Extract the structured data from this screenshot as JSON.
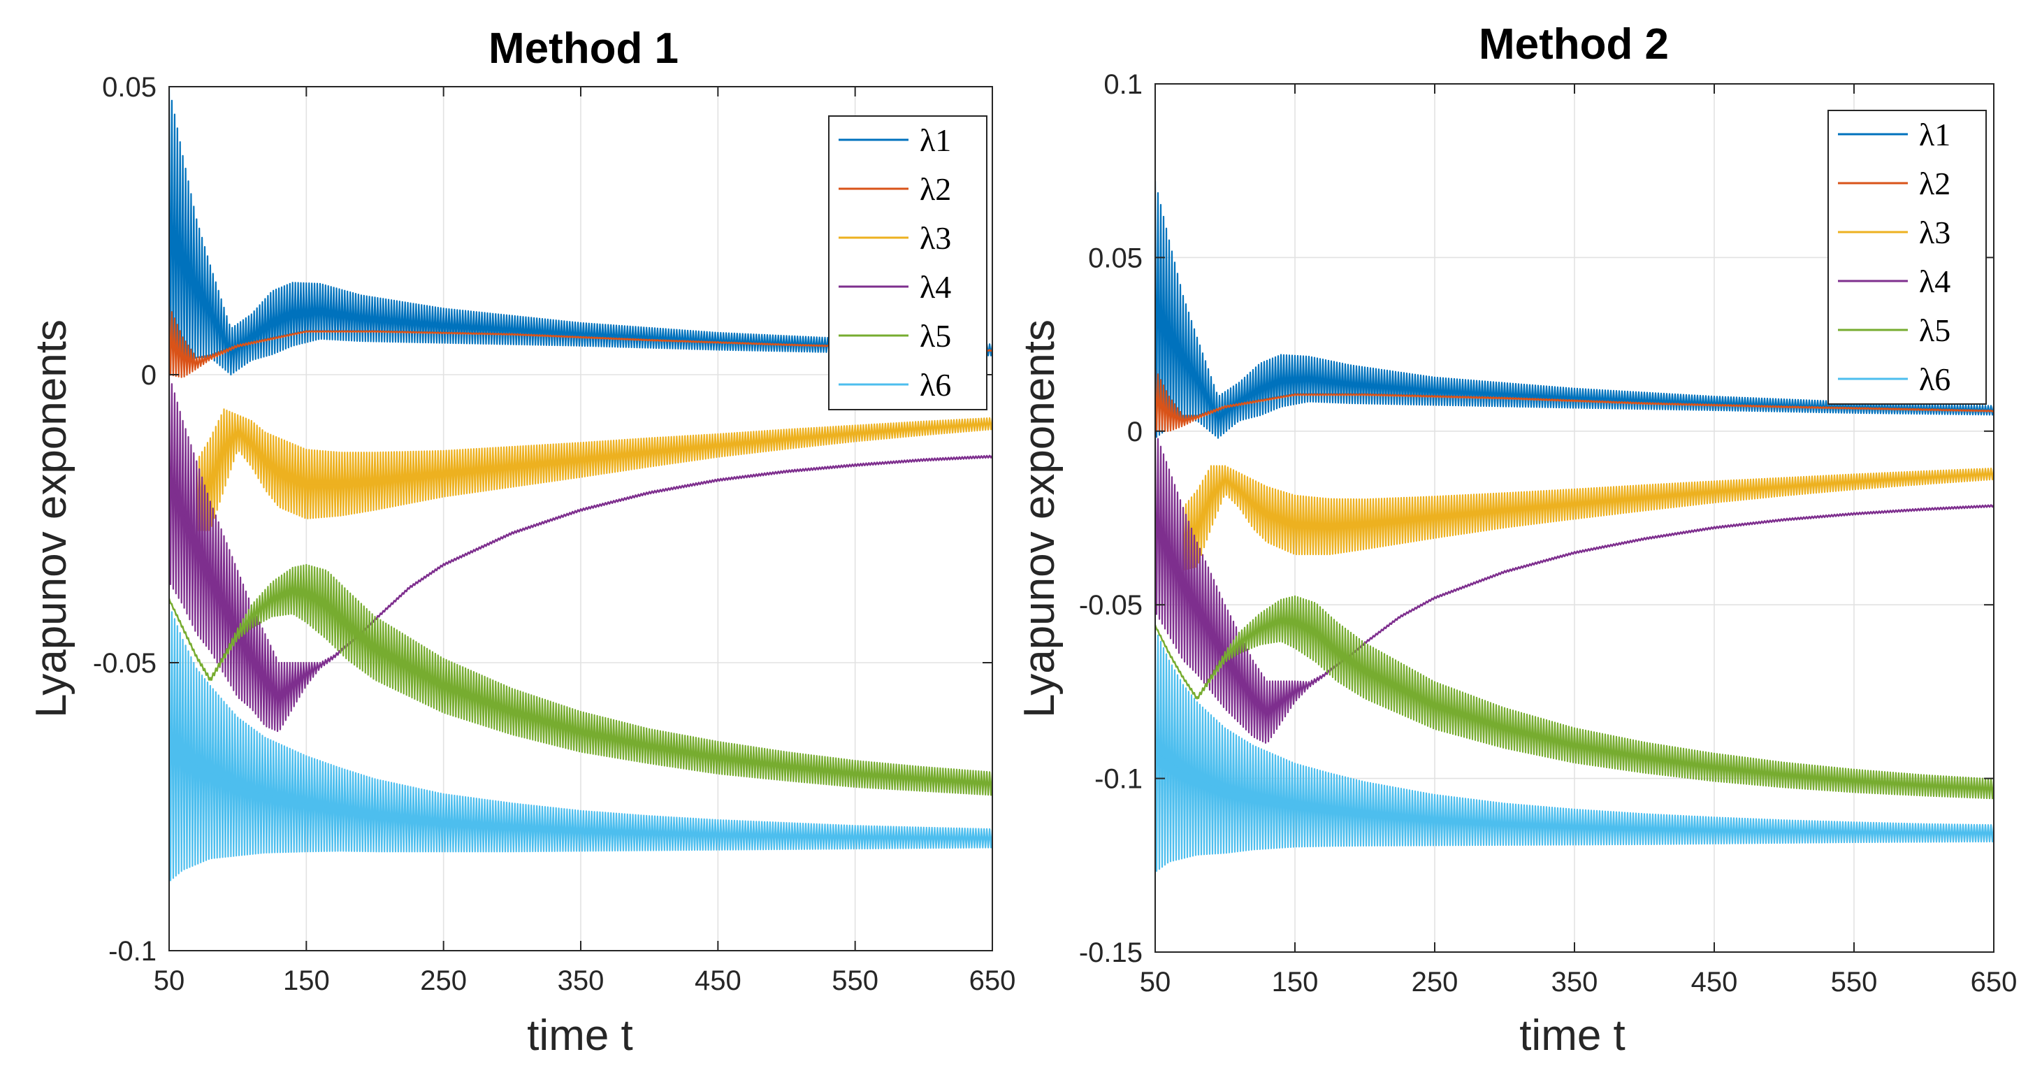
{
  "chart_data": [
    {
      "type": "line",
      "title": "Method 1",
      "xlabel": "time t",
      "ylabel": "Lyapunov exponents",
      "xlim": [
        50,
        650
      ],
      "ylim": [
        -0.1,
        0.05
      ],
      "xticks": [
        50,
        150,
        250,
        350,
        450,
        550,
        650
      ],
      "yticks": [
        -0.1,
        -0.05,
        0,
        0.05
      ],
      "xtick_labels": [
        "50",
        "150",
        "250",
        "350",
        "450",
        "550",
        "650"
      ],
      "ytick_labels": [
        "-0.1",
        "-0.05",
        "0",
        "0.05"
      ],
      "grid": true,
      "legend_position": "top-right",
      "series": [
        {
          "name": "λ1",
          "legend_label": "λ1",
          "color": "#0072BD",
          "x": [
            50,
            60,
            70,
            80,
            95,
            110,
            125,
            140,
            160,
            190,
            250,
            350,
            450,
            550,
            650
          ],
          "center": [
            0.025,
            0.02,
            0.015,
            0.011,
            0.004,
            0.0065,
            0.009,
            0.0105,
            0.011,
            0.0098,
            0.0085,
            0.007,
            0.0058,
            0.005,
            0.0043
          ],
          "spread": [
            0.025,
            0.018,
            0.012,
            0.008,
            0.004,
            0.004,
            0.0055,
            0.0055,
            0.0048,
            0.004,
            0.003,
            0.002,
            0.0015,
            0.0012,
            0.001
          ]
        },
        {
          "name": "λ2",
          "legend_label": "λ2",
          "color": "#D95319",
          "x": [
            50,
            60,
            70,
            80,
            100,
            150,
            200,
            300,
            400,
            500,
            650
          ],
          "center": [
            0.006,
            0.003,
            0.002,
            0.003,
            0.005,
            0.0075,
            0.0075,
            0.007,
            0.006,
            0.0052,
            0.0042
          ],
          "spread": [
            0.006,
            0.0035,
            0.001,
            0.0004,
            0.0002,
            0.0001,
            0.0001,
            0.0001,
            0.0001,
            0.0001,
            0.0001
          ]
        },
        {
          "name": "λ3",
          "legend_label": "λ3",
          "color": "#EDB120",
          "x": [
            70,
            80,
            90,
            100,
            110,
            120,
            130,
            150,
            175,
            200,
            250,
            300,
            350,
            400,
            450,
            500,
            550,
            600,
            650
          ],
          "center": [
            -0.021,
            -0.019,
            -0.013,
            -0.01,
            -0.012,
            -0.015,
            -0.017,
            -0.019,
            -0.019,
            -0.0185,
            -0.0172,
            -0.016,
            -0.0148,
            -0.0135,
            -0.0123,
            -0.0112,
            -0.0102,
            -0.0093,
            -0.0085
          ],
          "spread": [
            0.006,
            0.008,
            0.007,
            0.003,
            0.004,
            0.005,
            0.006,
            0.006,
            0.0055,
            0.005,
            0.004,
            0.0035,
            0.003,
            0.0025,
            0.002,
            0.0017,
            0.0014,
            0.0012,
            0.001
          ]
        },
        {
          "name": "λ4",
          "legend_label": "λ4",
          "color": "#7E2F8E",
          "x": [
            50,
            60,
            70,
            80,
            90,
            100,
            110,
            120,
            130,
            140,
            150,
            160,
            170,
            185,
            200,
            225,
            250,
            300,
            350,
            400,
            450,
            500,
            550,
            600,
            650
          ],
          "center": [
            -0.018,
            -0.024,
            -0.03,
            -0.035,
            -0.04,
            -0.045,
            -0.049,
            -0.053,
            -0.056,
            -0.054,
            -0.052,
            -0.0505,
            -0.049,
            -0.046,
            -0.0425,
            -0.037,
            -0.033,
            -0.0275,
            -0.0235,
            -0.0205,
            -0.0183,
            -0.0168,
            -0.0157,
            -0.0148,
            -0.0142
          ],
          "spread": [
            0.018,
            0.016,
            0.015,
            0.013,
            0.012,
            0.011,
            0.009,
            0.008,
            0.006,
            0.004,
            0.002,
            0.0005,
            0.0003,
            0.0002,
            0.0002,
            0.0002,
            0.0002,
            0.0002,
            0.0002,
            0.0002,
            0.0002,
            0.0002,
            0.0002,
            0.0002,
            0.0002
          ]
        },
        {
          "name": "λ5",
          "legend_label": "λ5",
          "color": "#77AC30",
          "x": [
            50,
            60,
            70,
            80,
            90,
            100,
            110,
            125,
            140,
            150,
            165,
            180,
            200,
            250,
            300,
            350,
            400,
            450,
            500,
            550,
            600,
            650
          ],
          "center": [
            -0.039,
            -0.044,
            -0.049,
            -0.053,
            -0.049,
            -0.045,
            -0.042,
            -0.039,
            -0.0375,
            -0.038,
            -0.04,
            -0.0435,
            -0.0475,
            -0.054,
            -0.0585,
            -0.062,
            -0.0645,
            -0.0665,
            -0.068,
            -0.0693,
            -0.0702,
            -0.071
          ],
          "spread": [
            0.0002,
            0.0003,
            0.0003,
            0.0004,
            0.0005,
            0.001,
            0.002,
            0.003,
            0.004,
            0.005,
            0.006,
            0.006,
            0.0055,
            0.0047,
            0.004,
            0.0035,
            0.003,
            0.0028,
            0.0025,
            0.0023,
            0.0021,
            0.002
          ]
        },
        {
          "name": "λ6",
          "legend_label": "λ6",
          "color": "#4DBEEE",
          "x": [
            50,
            60,
            70,
            80,
            100,
            120,
            150,
            175,
            200,
            250,
            300,
            350,
            400,
            450,
            500,
            550,
            600,
            650
          ],
          "center": [
            -0.064,
            -0.066,
            -0.068,
            -0.069,
            -0.0715,
            -0.073,
            -0.0745,
            -0.0755,
            -0.0765,
            -0.0778,
            -0.0786,
            -0.0792,
            -0.0796,
            -0.0799,
            -0.0801,
            -0.0803,
            -0.0804,
            -0.0805
          ],
          "spread": [
            0.024,
            0.02,
            0.017,
            0.015,
            0.012,
            0.01,
            0.0083,
            0.0072,
            0.0063,
            0.005,
            0.0042,
            0.0035,
            0.003,
            0.0026,
            0.0023,
            0.002,
            0.0018,
            0.0016
          ]
        }
      ]
    },
    {
      "type": "line",
      "title": "Method 2",
      "xlabel": "time t",
      "ylabel": "Lyapunov exponents",
      "xlim": [
        50,
        650
      ],
      "ylim": [
        -0.15,
        0.1
      ],
      "xticks": [
        50,
        150,
        250,
        350,
        450,
        550,
        650
      ],
      "yticks": [
        -0.15,
        -0.1,
        -0.05,
        0,
        0.05,
        0.1
      ],
      "xtick_labels": [
        "50",
        "150",
        "250",
        "350",
        "450",
        "550",
        "650"
      ],
      "ytick_labels": [
        "-0.15",
        "-0.1",
        "-0.05",
        "0",
        "0.05",
        "0.1"
      ],
      "grid": true,
      "legend_position": "top-right",
      "series": [
        {
          "name": "λ1",
          "legend_label": "λ1",
          "color": "#0072BD",
          "x": [
            50,
            60,
            70,
            80,
            95,
            110,
            125,
            140,
            160,
            190,
            250,
            350,
            450,
            550,
            650
          ],
          "center": [
            0.035,
            0.028,
            0.021,
            0.015,
            0.004,
            0.0085,
            0.012,
            0.0145,
            0.015,
            0.0135,
            0.0115,
            0.0095,
            0.008,
            0.0068,
            0.006
          ],
          "spread": [
            0.037,
            0.027,
            0.018,
            0.012,
            0.006,
            0.0055,
            0.0075,
            0.0075,
            0.0065,
            0.0055,
            0.004,
            0.0028,
            0.002,
            0.0016,
            0.0013
          ]
        },
        {
          "name": "λ2",
          "legend_label": "λ2",
          "color": "#D95319",
          "x": [
            50,
            60,
            70,
            80,
            100,
            150,
            200,
            300,
            400,
            500,
            650
          ],
          "center": [
            0.009,
            0.005,
            0.003,
            0.004,
            0.007,
            0.0105,
            0.0105,
            0.0095,
            0.008,
            0.007,
            0.0058
          ],
          "spread": [
            0.009,
            0.005,
            0.0015,
            0.0005,
            0.0003,
            0.0002,
            0.0002,
            0.0002,
            0.0002,
            0.0002,
            0.0002
          ]
        },
        {
          "name": "λ3",
          "legend_label": "λ3",
          "color": "#EDB120",
          "x": [
            70,
            80,
            90,
            100,
            110,
            120,
            130,
            150,
            175,
            200,
            250,
            300,
            350,
            400,
            450,
            500,
            550,
            600,
            650
          ],
          "center": [
            -0.031,
            -0.028,
            -0.019,
            -0.014,
            -0.017,
            -0.021,
            -0.024,
            -0.027,
            -0.0275,
            -0.0268,
            -0.0248,
            -0.0228,
            -0.021,
            -0.0192,
            -0.0175,
            -0.016,
            -0.0146,
            -0.0134,
            -0.0123
          ],
          "spread": [
            0.009,
            0.011,
            0.009,
            0.004,
            0.005,
            0.007,
            0.008,
            0.0085,
            0.008,
            0.0072,
            0.006,
            0.005,
            0.0043,
            0.0037,
            0.0031,
            0.0026,
            0.0022,
            0.0019,
            0.0016
          ]
        },
        {
          "name": "λ4",
          "legend_label": "λ4",
          "color": "#7E2F8E",
          "x": [
            50,
            60,
            70,
            80,
            90,
            100,
            110,
            120,
            130,
            140,
            150,
            160,
            170,
            185,
            200,
            225,
            250,
            300,
            350,
            400,
            450,
            500,
            550,
            600,
            650
          ],
          "center": [
            -0.026,
            -0.035,
            -0.044,
            -0.051,
            -0.058,
            -0.065,
            -0.071,
            -0.077,
            -0.081,
            -0.078,
            -0.075,
            -0.073,
            -0.0705,
            -0.066,
            -0.061,
            -0.0535,
            -0.048,
            -0.0405,
            -0.035,
            -0.031,
            -0.0278,
            -0.0255,
            -0.0238,
            -0.0225,
            -0.0215
          ],
          "spread": [
            0.026,
            0.024,
            0.022,
            0.019,
            0.017,
            0.015,
            0.013,
            0.011,
            0.009,
            0.006,
            0.003,
            0.0008,
            0.0004,
            0.0003,
            0.0003,
            0.0003,
            0.0003,
            0.0003,
            0.0003,
            0.0003,
            0.0003,
            0.0003,
            0.0003,
            0.0003,
            0.0003
          ]
        },
        {
          "name": "λ5",
          "legend_label": "λ5",
          "color": "#77AC30",
          "x": [
            50,
            60,
            70,
            80,
            90,
            100,
            110,
            125,
            140,
            150,
            165,
            180,
            200,
            250,
            300,
            350,
            400,
            450,
            500,
            550,
            600,
            650
          ],
          "center": [
            -0.056,
            -0.064,
            -0.071,
            -0.077,
            -0.071,
            -0.065,
            -0.061,
            -0.057,
            -0.0545,
            -0.055,
            -0.058,
            -0.0635,
            -0.069,
            -0.079,
            -0.0855,
            -0.0905,
            -0.094,
            -0.0968,
            -0.099,
            -0.1007,
            -0.102,
            -0.103
          ],
          "spread": [
            0.0003,
            0.0004,
            0.0004,
            0.0005,
            0.0008,
            0.0015,
            0.003,
            0.0045,
            0.006,
            0.0075,
            0.0085,
            0.0085,
            0.008,
            0.0068,
            0.0058,
            0.005,
            0.0044,
            0.004,
            0.0036,
            0.0033,
            0.003,
            0.0028
          ]
        },
        {
          "name": "λ6",
          "legend_label": "λ6",
          "color": "#4DBEEE",
          "x": [
            50,
            60,
            70,
            80,
            100,
            120,
            150,
            175,
            200,
            250,
            300,
            350,
            400,
            450,
            500,
            550,
            600,
            650
          ],
          "center": [
            -0.092,
            -0.095,
            -0.098,
            -0.1,
            -0.1035,
            -0.1055,
            -0.1077,
            -0.109,
            -0.1102,
            -0.112,
            -0.1132,
            -0.114,
            -0.1146,
            -0.115,
            -0.1153,
            -0.1155,
            -0.1157,
            -0.1158
          ],
          "spread": [
            0.035,
            0.029,
            0.025,
            0.022,
            0.018,
            0.015,
            0.012,
            0.0105,
            0.0092,
            0.0073,
            0.006,
            0.0051,
            0.0044,
            0.0038,
            0.0033,
            0.0029,
            0.0026,
            0.0024
          ]
        }
      ]
    }
  ]
}
